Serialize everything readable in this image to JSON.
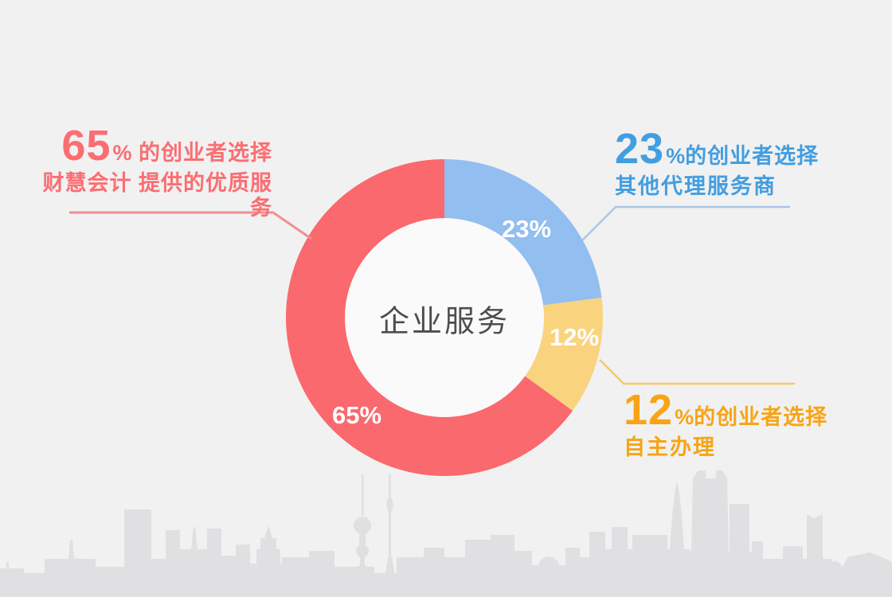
{
  "page": {
    "bg": "#F1F1F1",
    "skyline_color": "#E0E0E2",
    "skyline_light": "#E9E9EA",
    "donut_hole_color": "#FAFAFB",
    "center_text_color": "#4D4D4D"
  },
  "chart_data": {
    "type": "pie",
    "variant": "donut",
    "title": "企业服务",
    "center_label": "企业服务",
    "start_angle_deg": 0,
    "direction": "clockwise",
    "legend_position": "callouts",
    "slices": [
      {
        "name": "其他代理服务商",
        "value": 23,
        "label": "23%",
        "color": "#92BEF0"
      },
      {
        "name": "自主办理",
        "value": 12,
        "label": "12%",
        "color": "#FAD37F"
      },
      {
        "name": "财慧会计提供的优质服务",
        "value": 65,
        "label": "65%",
        "color": "#F9696E"
      }
    ]
  },
  "callouts": {
    "red": {
      "percent": "65",
      "percent_sign": "%",
      "line1_rest": " 的创业者选择",
      "line2": "财慧会计 提供的优质服务",
      "text_color": "#FA6E72",
      "leader_color": "#EE9093"
    },
    "blue": {
      "percent": "23",
      "percent_sign": "%",
      "line1_rest": "的创业者选择",
      "line2": "其他代理服务商",
      "text_color": "#429EE0",
      "leader_color": "#A9C7E8"
    },
    "orange": {
      "percent": "12",
      "percent_sign": "%",
      "line1_rest": "的创业者选择",
      "line2": "自主办理",
      "text_color": "#F8A416",
      "leader_color": "#F6C96B"
    }
  }
}
